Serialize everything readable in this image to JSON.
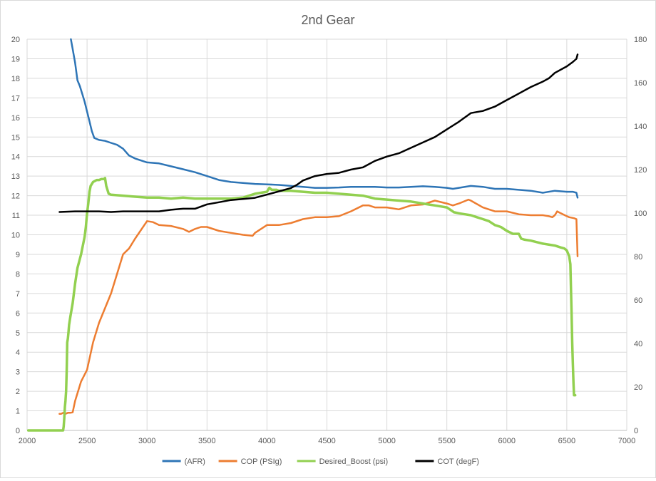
{
  "chart_data": {
    "type": "line",
    "title": "2nd Gear",
    "xlabel": "",
    "ylabel": "",
    "y2label": "",
    "xlim": [
      2000,
      7000
    ],
    "ylim": [
      0,
      20
    ],
    "y2lim": [
      0,
      180
    ],
    "x_ticks": [
      "2000",
      "2500",
      "3000",
      "3500",
      "4000",
      "4500",
      "5000",
      "5500",
      "6000",
      "6500",
      "7000"
    ],
    "y_ticks": [
      "0",
      "1",
      "2",
      "3",
      "4",
      "5",
      "6",
      "7",
      "8",
      "9",
      "10",
      "11",
      "12",
      "13",
      "14",
      "15",
      "16",
      "17",
      "18",
      "19",
      "20"
    ],
    "y2_ticks": [
      "0",
      "20",
      "40",
      "60",
      "80",
      "100",
      "120",
      "140",
      "160",
      "180"
    ],
    "grid": true,
    "legend_position": "bottom",
    "series": [
      {
        "name": "(AFR)",
        "color": "#2E75B6",
        "axis": "left",
        "x": [
          2365,
          2380,
          2400,
          2420,
          2440,
          2460,
          2480,
          2500,
          2520,
          2540,
          2560,
          2600,
          2650,
          2700,
          2750,
          2800,
          2850,
          2900,
          3000,
          3100,
          3200,
          3300,
          3400,
          3500,
          3600,
          3700,
          3800,
          3900,
          4000,
          4100,
          4200,
          4300,
          4400,
          4500,
          4600,
          4700,
          4800,
          4900,
          5000,
          5100,
          5200,
          5300,
          5400,
          5500,
          5550,
          5600,
          5700,
          5800,
          5900,
          6000,
          6100,
          6200,
          6300,
          6400,
          6500,
          6550,
          6580,
          6590
        ],
        "values": [
          20.0,
          19.5,
          18.8,
          17.9,
          17.6,
          17.2,
          16.8,
          16.3,
          15.8,
          15.3,
          14.95,
          14.85,
          14.8,
          14.7,
          14.6,
          14.4,
          14.05,
          13.9,
          13.7,
          13.65,
          13.5,
          13.35,
          13.2,
          13.0,
          12.8,
          12.7,
          12.65,
          12.6,
          12.58,
          12.55,
          12.5,
          12.45,
          12.4,
          12.4,
          12.42,
          12.45,
          12.45,
          12.45,
          12.42,
          12.42,
          12.45,
          12.48,
          12.45,
          12.4,
          12.35,
          12.4,
          12.5,
          12.45,
          12.35,
          12.35,
          12.3,
          12.25,
          12.15,
          12.25,
          12.2,
          12.2,
          12.15,
          11.9
        ]
      },
      {
        "name": "COP (PSIg)",
        "color": "#ED7D31",
        "axis": "left",
        "x": [
          2270,
          2285,
          2300,
          2320,
          2340,
          2360,
          2380,
          2400,
          2450,
          2500,
          2550,
          2600,
          2700,
          2800,
          2850,
          2900,
          3000,
          3050,
          3100,
          3200,
          3300,
          3350,
          3400,
          3450,
          3500,
          3600,
          3700,
          3800,
          3880,
          3900,
          4000,
          4100,
          4200,
          4300,
          4400,
          4500,
          4600,
          4700,
          4800,
          4850,
          4900,
          5000,
          5100,
          5200,
          5300,
          5400,
          5500,
          5550,
          5600,
          5680,
          5700,
          5800,
          5900,
          6000,
          6100,
          6200,
          6300,
          6350,
          6380,
          6400,
          6420,
          6450,
          6500,
          6520,
          6560,
          6580,
          6590
        ],
        "values": [
          0.85,
          0.85,
          0.9,
          0.85,
          0.9,
          0.9,
          0.92,
          1.5,
          2.5,
          3.1,
          4.5,
          5.5,
          7.0,
          9.0,
          9.3,
          9.8,
          10.7,
          10.65,
          10.5,
          10.45,
          10.3,
          10.15,
          10.3,
          10.4,
          10.4,
          10.2,
          10.1,
          10.0,
          9.95,
          10.1,
          10.5,
          10.5,
          10.6,
          10.8,
          10.9,
          10.9,
          10.95,
          11.2,
          11.5,
          11.5,
          11.4,
          11.4,
          11.3,
          11.5,
          11.55,
          11.75,
          11.6,
          11.5,
          11.6,
          11.8,
          11.75,
          11.4,
          11.2,
          11.2,
          11.05,
          11.0,
          11.0,
          10.95,
          10.9,
          11.0,
          11.2,
          11.1,
          10.95,
          10.9,
          10.85,
          10.8,
          8.9
        ]
      },
      {
        "name": "Desired_Boost (psi)",
        "color": "#92D050",
        "axis": "left",
        "x": [
          2010,
          2300,
          2305,
          2310,
          2315,
          2320,
          2325,
          2330,
          2335,
          2340,
          2345,
          2350,
          2360,
          2380,
          2400,
          2420,
          2450,
          2480,
          2490,
          2500,
          2510,
          2520,
          2530,
          2550,
          2580,
          2600,
          2620,
          2640,
          2650,
          2660,
          2680,
          2700,
          2800,
          2900,
          3000,
          3100,
          3200,
          3300,
          3400,
          3500,
          3600,
          3700,
          3800,
          3900,
          4000,
          4020,
          4040,
          4060,
          4080,
          4100,
          4200,
          4300,
          4400,
          4500,
          4600,
          4700,
          4800,
          4900,
          5000,
          5100,
          5200,
          5250,
          5300,
          5350,
          5400,
          5450,
          5500,
          5560,
          5600,
          5650,
          5700,
          5750,
          5800,
          5850,
          5900,
          5950,
          6000,
          6050,
          6100,
          6120,
          6150,
          6200,
          6300,
          6400,
          6450,
          6480,
          6500,
          6520,
          6530,
          6540,
          6545,
          6550,
          6555,
          6560,
          6570
        ],
        "values": [
          0,
          0,
          0.2,
          0.6,
          1.2,
          1.5,
          2.0,
          3.0,
          4.5,
          4.7,
          5.0,
          5.4,
          5.8,
          6.5,
          7.5,
          8.3,
          9.0,
          9.9,
          10.4,
          11.1,
          11.6,
          12.2,
          12.5,
          12.7,
          12.8,
          12.8,
          12.85,
          12.85,
          12.9,
          12.5,
          12.1,
          12.05,
          12.0,
          11.95,
          11.9,
          11.9,
          11.85,
          11.9,
          11.85,
          11.85,
          11.85,
          11.85,
          11.9,
          12.1,
          12.2,
          12.4,
          12.3,
          12.3,
          12.3,
          12.25,
          12.25,
          12.2,
          12.15,
          12.15,
          12.1,
          12.05,
          12.0,
          11.85,
          11.8,
          11.75,
          11.7,
          11.65,
          11.6,
          11.55,
          11.5,
          11.45,
          11.4,
          11.15,
          11.1,
          11.05,
          11.0,
          10.9,
          10.8,
          10.7,
          10.5,
          10.4,
          10.2,
          10.05,
          10.05,
          9.8,
          9.75,
          9.7,
          9.55,
          9.45,
          9.35,
          9.3,
          9.2,
          8.9,
          8.5,
          6.0,
          4.5,
          3.5,
          2.5,
          1.8,
          1.8
        ]
      },
      {
        "name": "COT (degF)",
        "color": "#000000",
        "axis": "right",
        "x": [
          2270,
          2400,
          2500,
          2600,
          2700,
          2800,
          2900,
          3000,
          3100,
          3200,
          3300,
          3400,
          3500,
          3600,
          3700,
          3800,
          3900,
          4000,
          4100,
          4200,
          4250,
          4300,
          4350,
          4400,
          4500,
          4600,
          4700,
          4800,
          4900,
          5000,
          5100,
          5200,
          5300,
          5400,
          5500,
          5600,
          5700,
          5800,
          5900,
          6000,
          6100,
          6200,
          6300,
          6350,
          6400,
          6500,
          6550,
          6580,
          6590
        ],
        "values": [
          100.5,
          100.8,
          100.8,
          100.8,
          100.5,
          100.8,
          100.8,
          100.8,
          100.8,
          101.5,
          102,
          102,
          104,
          105,
          106,
          106.5,
          107,
          108.5,
          110,
          111.5,
          113,
          115,
          116,
          117,
          118,
          118.5,
          120,
          121,
          124,
          126,
          127.5,
          130,
          132.5,
          135,
          138.5,
          142,
          146,
          147,
          149,
          152,
          155,
          158,
          160.5,
          162,
          164.5,
          167.5,
          169.5,
          171,
          173
        ]
      }
    ]
  }
}
